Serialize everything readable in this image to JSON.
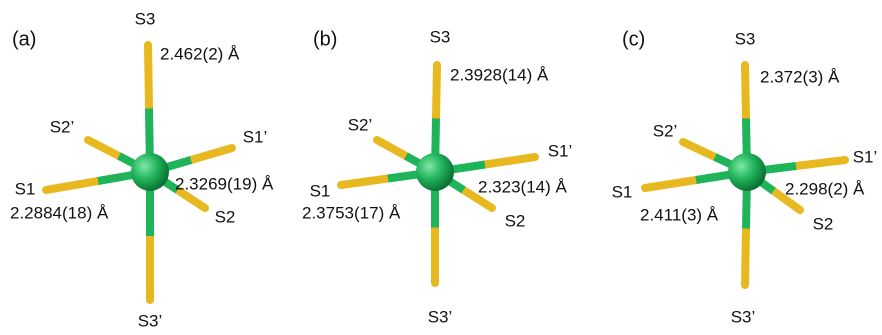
{
  "panels": [
    {
      "label": "(a)",
      "atoms": [
        "S3",
        "S2’",
        "S1’",
        "S1",
        "S2",
        "S3’"
      ],
      "bonds": [
        "2.462(2) Å",
        "2.3269(19) Å",
        "2.2884(18) Å"
      ]
    },
    {
      "label": "(b)",
      "atoms": [
        "S3",
        "S2’",
        "S1’",
        "S1",
        "S2",
        "S3’"
      ],
      "bonds": [
        "2.3928(14) Å",
        "2.323(14) Å",
        "2.3753(17) Å"
      ]
    },
    {
      "label": "(c)",
      "atoms": [
        "S3",
        "S2’",
        "S1’",
        "S1",
        "S2",
        "S3’"
      ],
      "bonds": [
        "2.372(3) Å",
        "2.298(2) Å",
        "2.411(3) Å"
      ]
    }
  ]
}
